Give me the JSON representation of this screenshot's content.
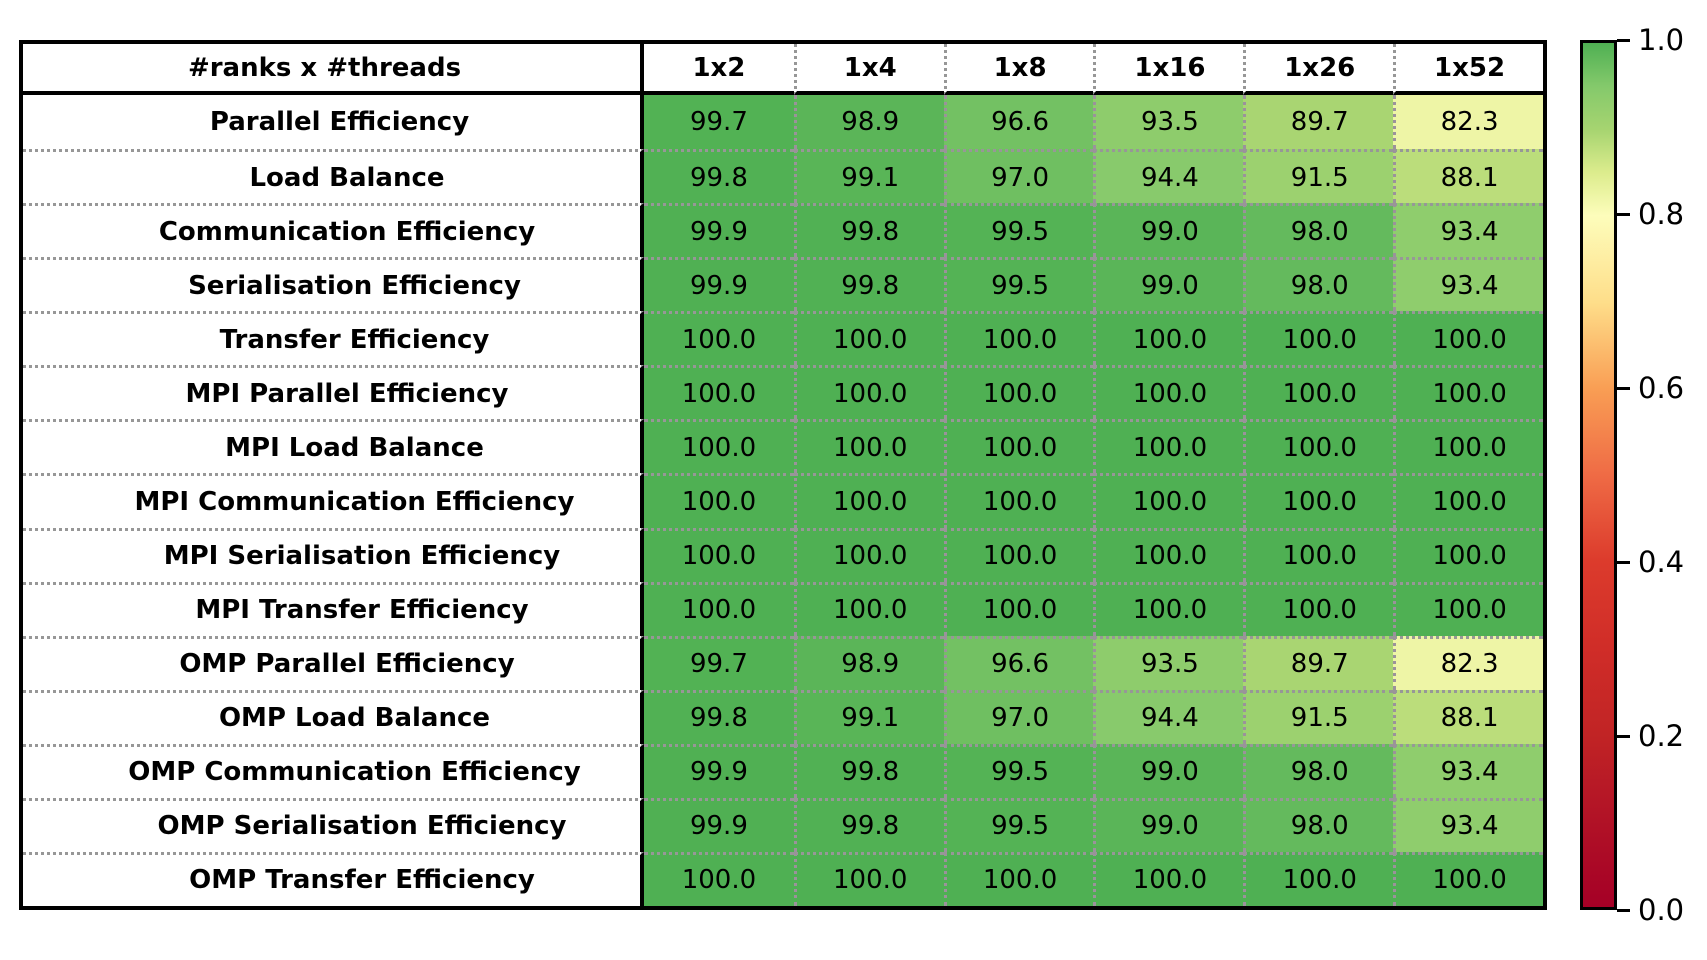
{
  "chart_data": {
    "type": "heatmap",
    "title": "",
    "corner_label": "#ranks x #threads",
    "columns": [
      "1x2",
      "1x4",
      "1x8",
      "1x16",
      "1x26",
      "1x52"
    ],
    "rows": [
      {
        "label": "Parallel Efficiency",
        "indent": 0,
        "values": [
          99.7,
          98.9,
          96.6,
          93.5,
          89.7,
          82.3
        ]
      },
      {
        "label": "Load Balance",
        "indent": 1,
        "values": [
          99.8,
          99.1,
          97.0,
          94.4,
          91.5,
          88.1
        ]
      },
      {
        "label": "Communication Efficiency",
        "indent": 1,
        "values": [
          99.9,
          99.8,
          99.5,
          99.0,
          98.0,
          93.4
        ]
      },
      {
        "label": "Serialisation Efficiency",
        "indent": 2,
        "values": [
          99.9,
          99.8,
          99.5,
          99.0,
          98.0,
          93.4
        ]
      },
      {
        "label": "Transfer Efficiency",
        "indent": 2,
        "values": [
          100.0,
          100.0,
          100.0,
          100.0,
          100.0,
          100.0
        ]
      },
      {
        "label": "MPI Parallel Efficiency",
        "indent": 1,
        "values": [
          100.0,
          100.0,
          100.0,
          100.0,
          100.0,
          100.0
        ]
      },
      {
        "label": "MPI Load Balance",
        "indent": 2,
        "values": [
          100.0,
          100.0,
          100.0,
          100.0,
          100.0,
          100.0
        ]
      },
      {
        "label": "MPI Communication Efficiency",
        "indent": 2,
        "values": [
          100.0,
          100.0,
          100.0,
          100.0,
          100.0,
          100.0
        ]
      },
      {
        "label": "MPI Serialisation Efficiency",
        "indent": 3,
        "values": [
          100.0,
          100.0,
          100.0,
          100.0,
          100.0,
          100.0
        ]
      },
      {
        "label": "MPI Transfer Efficiency",
        "indent": 3,
        "values": [
          100.0,
          100.0,
          100.0,
          100.0,
          100.0,
          100.0
        ]
      },
      {
        "label": "OMP Parallel Efficiency",
        "indent": 1,
        "values": [
          99.7,
          98.9,
          96.6,
          93.5,
          89.7,
          82.3
        ]
      },
      {
        "label": "OMP Load Balance",
        "indent": 2,
        "values": [
          99.8,
          99.1,
          97.0,
          94.4,
          91.5,
          88.1
        ]
      },
      {
        "label": "OMP Communication Efficiency",
        "indent": 2,
        "values": [
          99.9,
          99.8,
          99.5,
          99.0,
          98.0,
          93.4
        ]
      },
      {
        "label": "OMP Serialisation Efficiency",
        "indent": 3,
        "values": [
          99.9,
          99.8,
          99.5,
          99.0,
          98.0,
          93.4
        ]
      },
      {
        "label": "OMP Transfer Efficiency",
        "indent": 3,
        "values": [
          100.0,
          100.0,
          100.0,
          100.0,
          100.0,
          100.0
        ]
      }
    ],
    "value_format": "percent_one_decimal",
    "colorbar": {
      "min": 0.0,
      "max": 1.0,
      "tick_labels": [
        "1.0",
        "0.8",
        "0.6",
        "0.4",
        "0.2",
        "0.0"
      ],
      "tick_values": [
        1.0,
        0.8,
        0.6,
        0.4,
        0.2,
        0.0
      ],
      "colormap_anchors": [
        {
          "pos": 0.0,
          "color": "#a50026"
        },
        {
          "pos": 0.1,
          "color": "#b11226"
        },
        {
          "pos": 0.2,
          "color": "#c12425"
        },
        {
          "pos": 0.3,
          "color": "#d02d28"
        },
        {
          "pos": 0.4,
          "color": "#dc3b2c"
        },
        {
          "pos": 0.5,
          "color": "#ef6b45"
        },
        {
          "pos": 0.6,
          "color": "#f99e54"
        },
        {
          "pos": 0.7,
          "color": "#fede8a"
        },
        {
          "pos": 0.8,
          "color": "#fdfdbb"
        },
        {
          "pos": 0.85,
          "color": "#dcec8d"
        },
        {
          "pos": 0.9,
          "color": "#a6d470"
        },
        {
          "pos": 0.95,
          "color": "#84c96b"
        },
        {
          "pos": 1.0,
          "color": "#4fb053"
        }
      ]
    },
    "layout": {
      "grid": "dotted-separators",
      "legend_position": "right-colorbar"
    }
  }
}
